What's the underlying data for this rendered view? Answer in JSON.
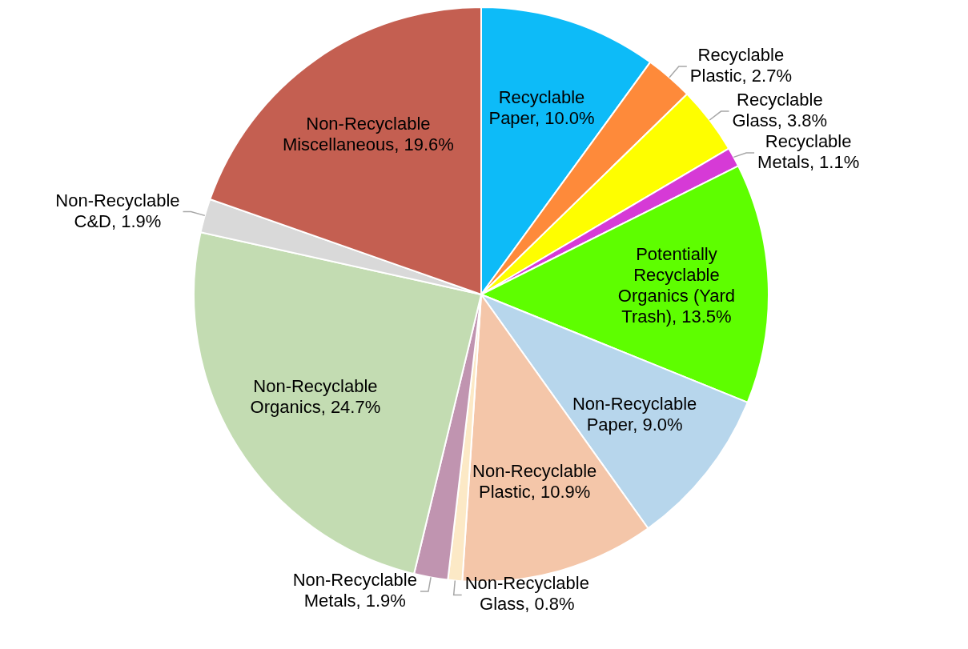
{
  "chart_data": {
    "type": "pie",
    "categories": [
      "Recyclable Paper",
      "Recyclable Plastic",
      "Recyclable Glass",
      "Recyclable Metals",
      "Potentially Recyclable Organics (Yard Trash)",
      "Non-Recyclable Paper",
      "Non-Recyclable Plastic",
      "Non-Recyclable Glass",
      "Non-Recyclable Metals",
      "Non-Recyclable Organics",
      "Non-Recyclable C&D",
      "Non-Recyclable Miscellaneous"
    ],
    "values": [
      10.0,
      2.7,
      3.8,
      1.1,
      13.5,
      9.0,
      10.9,
      0.8,
      1.9,
      24.7,
      1.9,
      19.6
    ],
    "value_labels": [
      "10.0%",
      "2.7%",
      "3.8%",
      "1.1%",
      "13.5%",
      "9.0%",
      "10.9%",
      "0.8%",
      "1.9%",
      "24.7%",
      "1.9%",
      "19.6%"
    ],
    "colors": [
      "#0dbbf8",
      "#fe8a3a",
      "#fefe00",
      "#d63ad6",
      "#5efe00",
      "#b7d6ec",
      "#f4c6a9",
      "#fce9c6",
      "#c094b0",
      "#c3dcb2",
      "#d9d9d9",
      "#c45f51"
    ],
    "legend": false
  }
}
